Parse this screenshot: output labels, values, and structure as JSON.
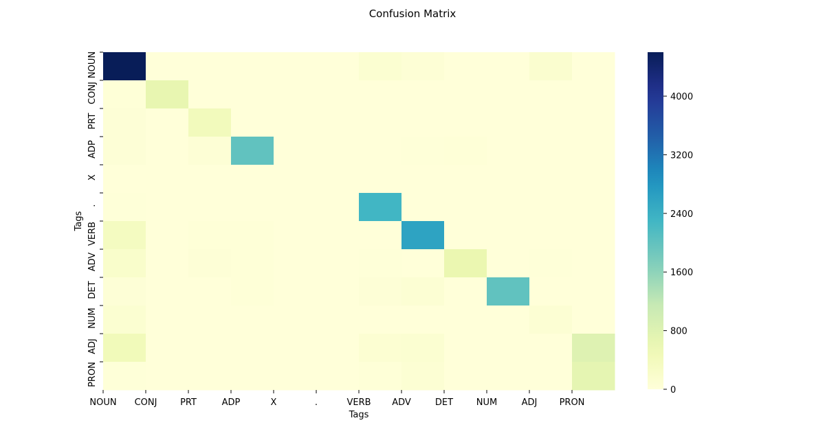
{
  "chart_data": {
    "type": "heatmap",
    "title": "Confusion Matrix",
    "xlabel": "Tags",
    "ylabel": "Tags",
    "x_tick_labels": [
      "NOUN",
      "CONJ",
      "PRT",
      "ADP",
      "X",
      ".",
      "VERB",
      "ADV",
      "DET",
      "NUM",
      "ADJ",
      "PRON"
    ],
    "y_tick_labels": [
      "NOUN",
      "CONJ",
      "PRT",
      "ADP",
      "X",
      ".",
      "VERB",
      "ADV",
      "DET",
      "NUM",
      "ADJ",
      "PRON"
    ],
    "colormap": "YlGnBu",
    "colorbar": {
      "min": 0,
      "max": 4600,
      "ticks": [
        "0",
        "800",
        "1600",
        "2400",
        "3200",
        "4000"
      ]
    },
    "matrix": [
      [
        4600,
        0,
        0,
        0,
        0,
        0,
        120,
        60,
        0,
        0,
        150,
        0
      ],
      [
        30,
        650,
        0,
        0,
        0,
        0,
        0,
        0,
        0,
        0,
        0,
        0
      ],
      [
        50,
        0,
        420,
        0,
        0,
        0,
        0,
        0,
        0,
        0,
        0,
        0
      ],
      [
        50,
        0,
        60,
        2000,
        0,
        0,
        0,
        20,
        30,
        0,
        0,
        0
      ],
      [
        0,
        0,
        0,
        0,
        0,
        0,
        0,
        0,
        0,
        0,
        0,
        0
      ],
      [
        20,
        0,
        0,
        0,
        0,
        0,
        2300,
        0,
        0,
        0,
        0,
        0
      ],
      [
        350,
        0,
        30,
        30,
        0,
        0,
        0,
        2600,
        0,
        0,
        0,
        0
      ],
      [
        200,
        0,
        50,
        30,
        0,
        0,
        20,
        0,
        600,
        0,
        20,
        0
      ],
      [
        50,
        0,
        0,
        30,
        0,
        0,
        50,
        80,
        0,
        2000,
        0,
        0
      ],
      [
        120,
        0,
        0,
        0,
        0,
        0,
        0,
        0,
        0,
        0,
        80,
        0
      ],
      [
        450,
        0,
        0,
        0,
        0,
        0,
        100,
        120,
        0,
        0,
        0,
        800
      ],
      [
        20,
        0,
        0,
        0,
        0,
        0,
        30,
        80,
        0,
        0,
        0,
        700
      ]
    ],
    "grid": false,
    "legend": "none"
  }
}
